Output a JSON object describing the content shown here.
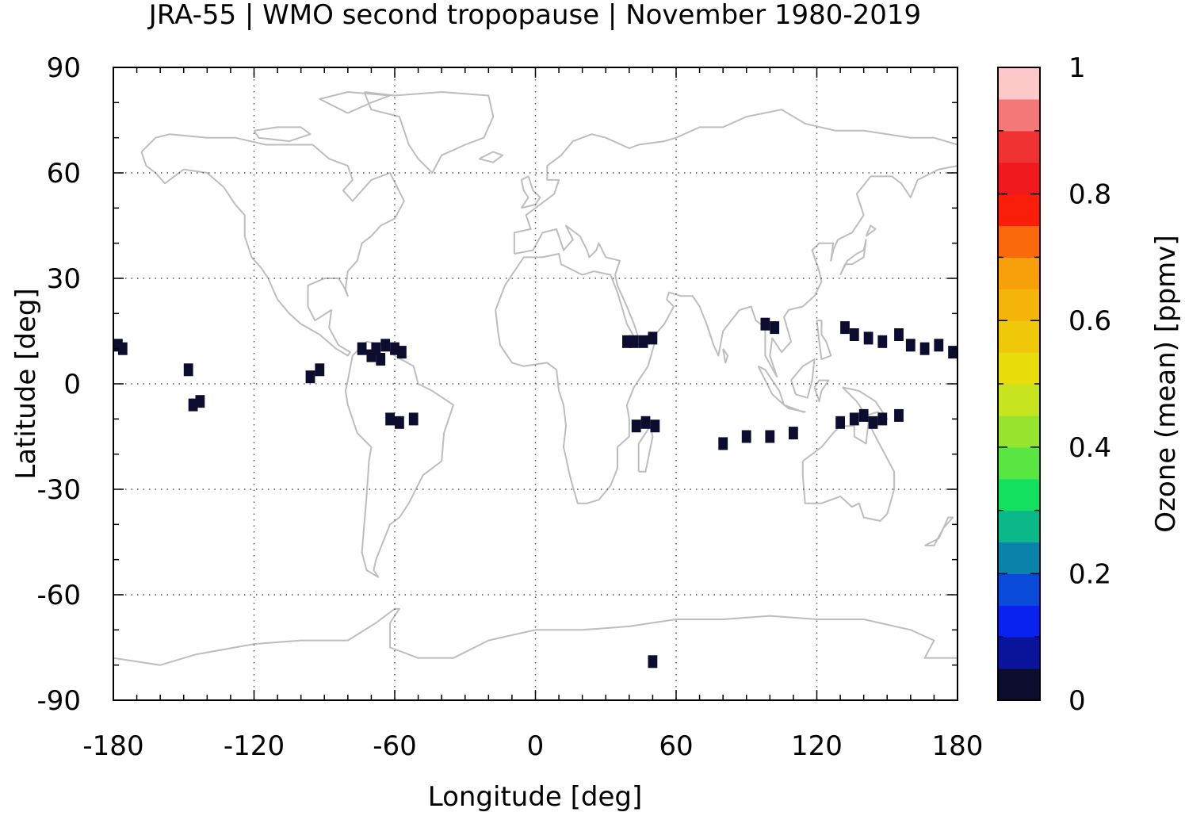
{
  "chart_data": {
    "type": "heatmap",
    "title": "JRA-55 | WMO second tropopause | November 1980-2019",
    "xlabel": "Longitude [deg]",
    "ylabel": "Latitude [deg]",
    "xlim": [
      -180,
      180
    ],
    "ylim": [
      -90,
      90
    ],
    "x_ticks": [
      -180,
      -120,
      -60,
      0,
      60,
      120,
      180
    ],
    "x_tick_labels": [
      "-180",
      "-120",
      "-60",
      "0",
      "60",
      "120",
      "180"
    ],
    "y_ticks": [
      90,
      60,
      30,
      0,
      -30,
      -60,
      -90
    ],
    "y_tick_labels": [
      "90",
      "60",
      "30",
      "0",
      "-30",
      "-60",
      "-90"
    ],
    "grid": true,
    "background": "coastlines",
    "colorbar": {
      "label": "Ozone (mean) [ppmv]",
      "range": [
        0,
        1
      ],
      "ticks": [
        0,
        0.2,
        0.4,
        0.6,
        0.8,
        1
      ],
      "tick_labels": [
        "0",
        "0.2",
        "0.4",
        "0.6",
        "0.8",
        "1"
      ],
      "colors": [
        "#0c0c2e",
        "#0a149a",
        "#0a22f0",
        "#0a4ad8",
        "#0a82aa",
        "#0ab888",
        "#14e060",
        "#5ae642",
        "#96e42e",
        "#c8e41e",
        "#e8dc0a",
        "#f0c80a",
        "#f4b40a",
        "#f8a00a",
        "#fa6a0a",
        "#fa1e0a",
        "#f01a1e",
        "#f03232",
        "#f47878",
        "#fcc8c8"
      ]
    },
    "cells": [
      {
        "lon": -178,
        "lat": 11,
        "value": 0.02
      },
      {
        "lon": -176,
        "lat": 10,
        "value": 0.02
      },
      {
        "lon": -146,
        "lat": -6,
        "value": 0.02
      },
      {
        "lon": -143,
        "lat": -5,
        "value": 0.02
      },
      {
        "lon": -148,
        "lat": 4,
        "value": 0.02
      },
      {
        "lon": -96,
        "lat": 2,
        "value": 0.02
      },
      {
        "lon": -92,
        "lat": 4,
        "value": 0.02
      },
      {
        "lon": -74,
        "lat": 10,
        "value": 0.02
      },
      {
        "lon": -68,
        "lat": 10,
        "value": 0.02
      },
      {
        "lon": -64,
        "lat": 11,
        "value": 0.02
      },
      {
        "lon": -60,
        "lat": 10,
        "value": 0.02
      },
      {
        "lon": -57,
        "lat": 9,
        "value": 0.02
      },
      {
        "lon": -66,
        "lat": 7,
        "value": 0.02
      },
      {
        "lon": -70,
        "lat": 8,
        "value": 0.02
      },
      {
        "lon": -62,
        "lat": -10,
        "value": 0.02
      },
      {
        "lon": -58,
        "lat": -11,
        "value": 0.02
      },
      {
        "lon": -52,
        "lat": -10,
        "value": 0.02
      },
      {
        "lon": 42,
        "lat": 12,
        "value": 0.02
      },
      {
        "lon": 46,
        "lat": 12,
        "value": 0.02
      },
      {
        "lon": 50,
        "lat": 13,
        "value": 0.02
      },
      {
        "lon": 39,
        "lat": 12,
        "value": 0.02
      },
      {
        "lon": 47,
        "lat": -11,
        "value": 0.02
      },
      {
        "lon": 51,
        "lat": -12,
        "value": 0.02
      },
      {
        "lon": 43,
        "lat": -12,
        "value": 0.02
      },
      {
        "lon": 80,
        "lat": -17,
        "value": 0.02
      },
      {
        "lon": 90,
        "lat": -15,
        "value": 0.02
      },
      {
        "lon": 100,
        "lat": -15,
        "value": 0.02
      },
      {
        "lon": 110,
        "lat": -14,
        "value": 0.02
      },
      {
        "lon": 98,
        "lat": 17,
        "value": 0.02
      },
      {
        "lon": 102,
        "lat": 16,
        "value": 0.02
      },
      {
        "lon": 132,
        "lat": 16,
        "value": 0.02
      },
      {
        "lon": 136,
        "lat": 14,
        "value": 0.02
      },
      {
        "lon": 142,
        "lat": 13,
        "value": 0.02
      },
      {
        "lon": 148,
        "lat": 12,
        "value": 0.02
      },
      {
        "lon": 155,
        "lat": 14,
        "value": 0.02
      },
      {
        "lon": 160,
        "lat": 11,
        "value": 0.02
      },
      {
        "lon": 166,
        "lat": 10,
        "value": 0.02
      },
      {
        "lon": 172,
        "lat": 11,
        "value": 0.02
      },
      {
        "lon": 178,
        "lat": 9,
        "value": 0.02
      },
      {
        "lon": 130,
        "lat": -11,
        "value": 0.02
      },
      {
        "lon": 136,
        "lat": -10,
        "value": 0.02
      },
      {
        "lon": 140,
        "lat": -9,
        "value": 0.02
      },
      {
        "lon": 144,
        "lat": -11,
        "value": 0.02
      },
      {
        "lon": 148,
        "lat": -10,
        "value": 0.02
      },
      {
        "lon": 155,
        "lat": -9,
        "value": 0.02
      },
      {
        "lon": 50,
        "lat": -79,
        "value": 0.02
      }
    ]
  }
}
